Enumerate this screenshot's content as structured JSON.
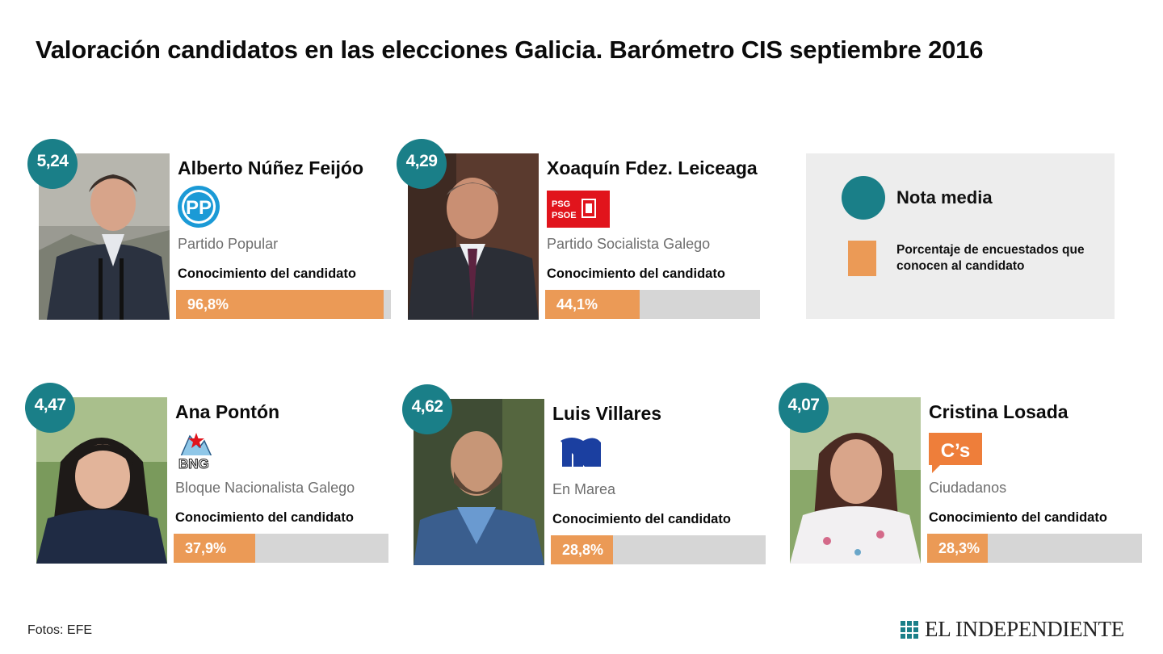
{
  "title": "Valoración candidatos en las elecciones Galicia. Barómetro CIS septiembre 2016",
  "chart_data": {
    "type": "bar",
    "title": "Valoración candidatos en las elecciones Galicia. Barómetro CIS septiembre 2016",
    "metric_label": "Conocimiento del candidato",
    "xlim": [
      0,
      100
    ],
    "candidates": [
      {
        "name": "Alberto Núñez Feijóo",
        "party": "Partido Popular",
        "logo": "pp-logo",
        "score_text": "5,24",
        "score": 5.24,
        "knowledge_text": "96,8%",
        "knowledge": 96.8
      },
      {
        "name": "Xoaquín Fdez. Leiceaga",
        "party": "Partido Socialista Galego",
        "logo": "psdeg-psoe-logo",
        "score_text": "4,29",
        "score": 4.29,
        "knowledge_text": "44,1%",
        "knowledge": 44.1
      },
      {
        "name": "Ana Pontón",
        "party": "Bloque Nacionalista Galego",
        "logo": "bng-logo",
        "score_text": "4,47",
        "score": 4.47,
        "knowledge_text": "37,9%",
        "knowledge": 37.9
      },
      {
        "name": "Luis Villares",
        "party": "En Marea",
        "logo": "en-marea-logo",
        "score_text": "4,62",
        "score": 4.62,
        "knowledge_text": "28,8%",
        "knowledge": 28.8
      },
      {
        "name": "Cristina Losada",
        "party": "Ciudadanos",
        "logo": "ciudadanos-logo",
        "score_text": "4,07",
        "score": 4.07,
        "knowledge_text": "28,3%",
        "knowledge": 28.3
      }
    ],
    "legend": {
      "circle_label": "Nota media",
      "square_label": "Porcentaje de encuestados que conocen al candidato"
    }
  },
  "colors": {
    "score_circle": "#1a7f88",
    "bar_fill": "#eb9a56",
    "bar_track": "#d6d6d6",
    "legend_bg": "#ededed",
    "pp_blue": "#1b9ad6",
    "psoe_red": "#e1141c",
    "en_marea_blue": "#1b3fa0",
    "cs_orange": "#ee7e3a"
  },
  "footer": {
    "credit": "Fotos: EFE",
    "brand": "EL INDEPENDIENTE"
  }
}
